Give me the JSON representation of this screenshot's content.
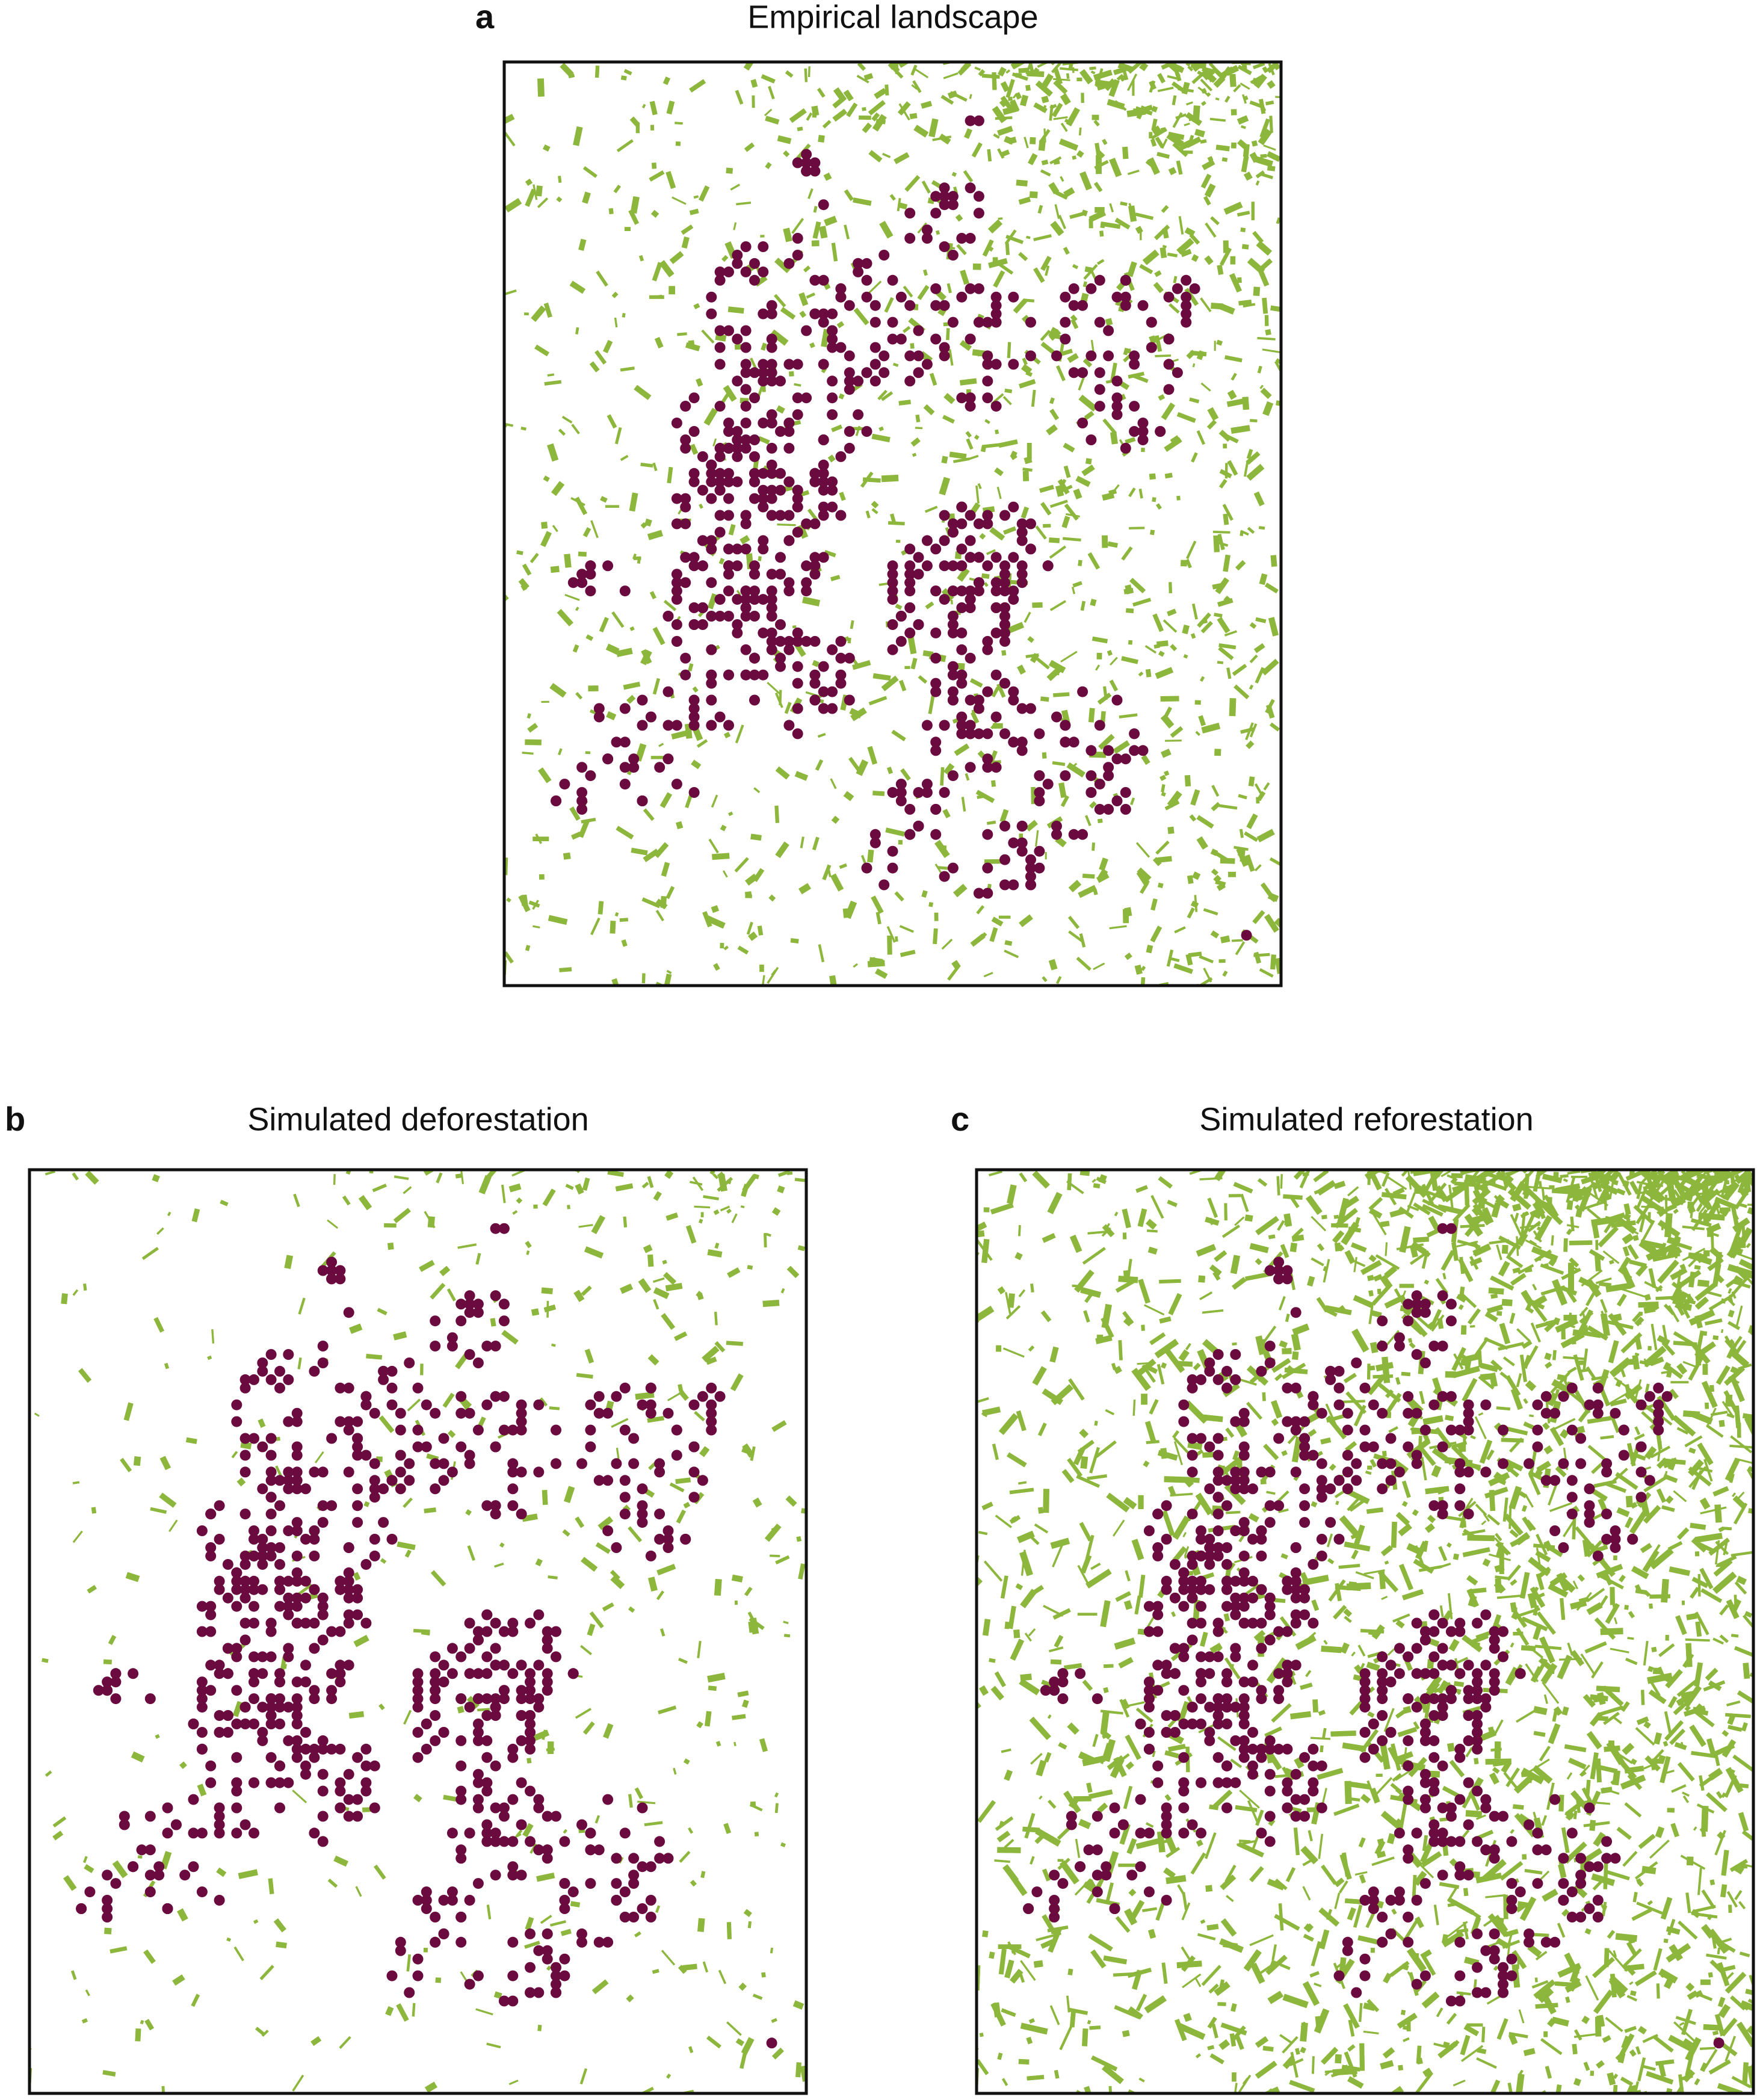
{
  "panels": [
    {
      "letter": "a",
      "title": "Empirical landscape"
    },
    {
      "letter": "b",
      "title": "Simulated deforestation"
    },
    {
      "letter": "c",
      "title": "Simulated reforestation"
    }
  ]
}
